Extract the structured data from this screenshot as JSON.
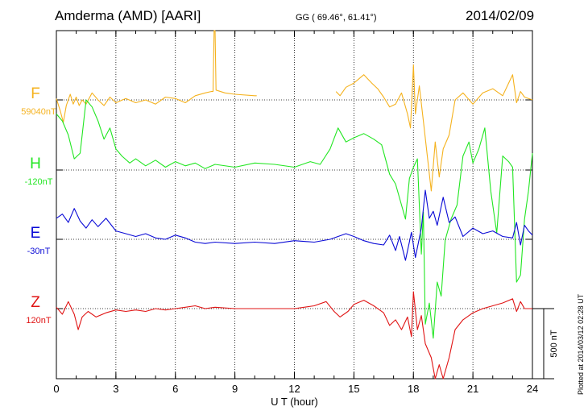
{
  "header": {
    "station": "Amderma (AMD)  [AARI]",
    "coords": "GG ( 69.46°,  61.41°)",
    "date": "2014/02/09"
  },
  "footnote": "Plotted at 2014/03/12 02:28 UT",
  "chart_data": {
    "type": "line",
    "xlabel": "U T (hour)",
    "xlim": [
      0,
      24
    ],
    "xticks": [
      "0",
      "3",
      "6",
      "9",
      "12",
      "15",
      "18",
      "21",
      "24"
    ],
    "grid": true,
    "scale_bar": {
      "label": "500 nT",
      "value_nT": 500
    },
    "series": [
      {
        "name": "F",
        "baseline_label": "59040nT",
        "color": "#f5b21e",
        "gaps": [
          [
            10.1,
            14.1
          ]
        ],
        "points": [
          [
            0,
            -10
          ],
          [
            0.2,
            80
          ],
          [
            0.35,
            160
          ],
          [
            0.5,
            40
          ],
          [
            0.7,
            -40
          ],
          [
            0.85,
            30
          ],
          [
            1.0,
            -20
          ],
          [
            1.15,
            40
          ],
          [
            1.3,
            0
          ],
          [
            1.5,
            30
          ],
          [
            1.8,
            -50
          ],
          [
            2.1,
            0
          ],
          [
            2.4,
            40
          ],
          [
            2.7,
            -20
          ],
          [
            3.0,
            20
          ],
          [
            3.5,
            -10
          ],
          [
            4.0,
            20
          ],
          [
            4.5,
            0
          ],
          [
            5.0,
            30
          ],
          [
            5.5,
            -20
          ],
          [
            6.0,
            -10
          ],
          [
            6.5,
            20
          ],
          [
            7.0,
            -30
          ],
          [
            7.5,
            -50
          ],
          [
            7.8,
            -60
          ],
          [
            7.9,
            -60
          ],
          [
            7.95,
            -1000
          ],
          [
            8.0,
            -1000
          ],
          [
            8.05,
            -70
          ],
          [
            8.5,
            -50
          ],
          [
            9.0,
            -40
          ],
          [
            10.0,
            -30
          ],
          [
            10.1,
            -30
          ],
          [
            14.1,
            -60
          ],
          [
            14.3,
            -30
          ],
          [
            14.6,
            -90
          ],
          [
            15.0,
            -120
          ],
          [
            15.5,
            -180
          ],
          [
            15.9,
            -120
          ],
          [
            16.2,
            -80
          ],
          [
            16.5,
            -20
          ],
          [
            16.8,
            50
          ],
          [
            17.1,
            30
          ],
          [
            17.4,
            -50
          ],
          [
            17.7,
            100
          ],
          [
            17.85,
            200
          ],
          [
            18.0,
            -250
          ],
          [
            18.1,
            100
          ],
          [
            18.3,
            -100
          ],
          [
            18.5,
            150
          ],
          [
            18.7,
            400
          ],
          [
            18.9,
            650
          ],
          [
            19.1,
            300
          ],
          [
            19.3,
            550
          ],
          [
            19.5,
            350
          ],
          [
            19.8,
            250
          ],
          [
            20.1,
            0
          ],
          [
            20.5,
            -50
          ],
          [
            21.0,
            30
          ],
          [
            21.5,
            -50
          ],
          [
            22.0,
            -80
          ],
          [
            22.5,
            -30
          ],
          [
            22.8,
            -120
          ],
          [
            23.0,
            -180
          ],
          [
            23.2,
            20
          ],
          [
            23.4,
            -60
          ],
          [
            23.6,
            -20
          ],
          [
            24.0,
            0
          ]
        ]
      },
      {
        "name": "H",
        "baseline_label": "-120nT",
        "color": "#22e622",
        "gaps": [],
        "points": [
          [
            0,
            -400
          ],
          [
            0.3,
            -350
          ],
          [
            0.6,
            -250
          ],
          [
            0.9,
            -80
          ],
          [
            1.2,
            -120
          ],
          [
            1.5,
            -500
          ],
          [
            1.8,
            -450
          ],
          [
            2.1,
            -350
          ],
          [
            2.4,
            -220
          ],
          [
            2.7,
            -300
          ],
          [
            3.0,
            -150
          ],
          [
            3.3,
            -100
          ],
          [
            3.7,
            -50
          ],
          [
            4.0,
            -80
          ],
          [
            4.5,
            -30
          ],
          [
            5.0,
            -70
          ],
          [
            5.5,
            -20
          ],
          [
            6.0,
            -60
          ],
          [
            6.5,
            -30
          ],
          [
            7.0,
            -50
          ],
          [
            7.5,
            -10
          ],
          [
            8.0,
            -40
          ],
          [
            9.0,
            -20
          ],
          [
            10.0,
            -50
          ],
          [
            11.0,
            -40
          ],
          [
            12.0,
            -20
          ],
          [
            12.8,
            -60
          ],
          [
            13.3,
            -40
          ],
          [
            13.8,
            -150
          ],
          [
            14.2,
            -300
          ],
          [
            14.6,
            -200
          ],
          [
            15.0,
            -230
          ],
          [
            15.5,
            -260
          ],
          [
            16.0,
            -220
          ],
          [
            16.4,
            -180
          ],
          [
            16.8,
            30
          ],
          [
            17.1,
            100
          ],
          [
            17.4,
            250
          ],
          [
            17.6,
            350
          ],
          [
            17.8,
            60
          ],
          [
            18.0,
            -20
          ],
          [
            18.2,
            -80
          ],
          [
            18.4,
            600
          ],
          [
            18.5,
            300
          ],
          [
            18.6,
            1100
          ],
          [
            18.8,
            950
          ],
          [
            19.0,
            1200
          ],
          [
            19.2,
            800
          ],
          [
            19.4,
            900
          ],
          [
            19.6,
            500
          ],
          [
            19.9,
            350
          ],
          [
            20.2,
            250
          ],
          [
            20.5,
            -100
          ],
          [
            20.8,
            -200
          ],
          [
            21.0,
            -50
          ],
          [
            21.3,
            -150
          ],
          [
            21.6,
            -300
          ],
          [
            21.9,
            150
          ],
          [
            22.2,
            450
          ],
          [
            22.5,
            -100
          ],
          [
            22.8,
            -60
          ],
          [
            23.0,
            -20
          ],
          [
            23.2,
            800
          ],
          [
            23.4,
            750
          ],
          [
            23.6,
            350
          ],
          [
            23.8,
            150
          ],
          [
            24.0,
            -120
          ]
        ]
      },
      {
        "name": "E",
        "baseline_label": "-30nT",
        "color": "#0a0ad6",
        "gaps": [],
        "points": [
          [
            0,
            -150
          ],
          [
            0.3,
            -180
          ],
          [
            0.6,
            -120
          ],
          [
            0.9,
            -220
          ],
          [
            1.2,
            -130
          ],
          [
            1.5,
            -80
          ],
          [
            1.8,
            -140
          ],
          [
            2.1,
            -90
          ],
          [
            2.5,
            -150
          ],
          [
            3.0,
            -60
          ],
          [
            3.5,
            -40
          ],
          [
            4.0,
            -20
          ],
          [
            4.5,
            -40
          ],
          [
            5.0,
            -10
          ],
          [
            5.5,
            0
          ],
          [
            6.0,
            -30
          ],
          [
            6.5,
            -10
          ],
          [
            7.0,
            20
          ],
          [
            7.5,
            30
          ],
          [
            8.0,
            20
          ],
          [
            9.0,
            30
          ],
          [
            10.0,
            20
          ],
          [
            11.0,
            30
          ],
          [
            12.0,
            10
          ],
          [
            13.0,
            20
          ],
          [
            13.8,
            0
          ],
          [
            14.2,
            -20
          ],
          [
            14.6,
            -40
          ],
          [
            15.0,
            -20
          ],
          [
            15.5,
            10
          ],
          [
            16.0,
            30
          ],
          [
            16.5,
            40
          ],
          [
            16.8,
            -30
          ],
          [
            17.1,
            80
          ],
          [
            17.3,
            -20
          ],
          [
            17.6,
            150
          ],
          [
            17.9,
            -50
          ],
          [
            18.1,
            130
          ],
          [
            18.4,
            -80
          ],
          [
            18.6,
            -350
          ],
          [
            18.8,
            -150
          ],
          [
            19.0,
            -200
          ],
          [
            19.2,
            -100
          ],
          [
            19.5,
            -300
          ],
          [
            19.8,
            -120
          ],
          [
            20.1,
            -160
          ],
          [
            20.5,
            -20
          ],
          [
            21.0,
            -80
          ],
          [
            21.5,
            -40
          ],
          [
            22.0,
            -60
          ],
          [
            22.5,
            -20
          ],
          [
            23.0,
            -10
          ],
          [
            23.2,
            -120
          ],
          [
            23.4,
            40
          ],
          [
            23.6,
            -100
          ],
          [
            23.8,
            -60
          ],
          [
            24.0,
            -30
          ]
        ]
      },
      {
        "name": "Z",
        "baseline_label": "120nT",
        "color": "#e01414",
        "gaps": [],
        "points": [
          [
            0,
            -10
          ],
          [
            0.3,
            40
          ],
          [
            0.6,
            -50
          ],
          [
            0.9,
            40
          ],
          [
            1.1,
            150
          ],
          [
            1.3,
            60
          ],
          [
            1.6,
            20
          ],
          [
            2.0,
            60
          ],
          [
            2.5,
            30
          ],
          [
            3.0,
            10
          ],
          [
            3.5,
            20
          ],
          [
            4.0,
            10
          ],
          [
            4.5,
            20
          ],
          [
            5.0,
            0
          ],
          [
            5.5,
            10
          ],
          [
            6.0,
            0
          ],
          [
            6.5,
            -10
          ],
          [
            7.0,
            -20
          ],
          [
            7.5,
            0
          ],
          [
            8.0,
            -10
          ],
          [
            9.0,
            0
          ],
          [
            10.0,
            0
          ],
          [
            11.0,
            0
          ],
          [
            12.0,
            0
          ],
          [
            13.0,
            -20
          ],
          [
            13.6,
            -50
          ],
          [
            14.0,
            20
          ],
          [
            14.3,
            60
          ],
          [
            14.7,
            20
          ],
          [
            15.0,
            -30
          ],
          [
            15.5,
            -60
          ],
          [
            16.0,
            -20
          ],
          [
            16.5,
            30
          ],
          [
            16.8,
            120
          ],
          [
            17.1,
            80
          ],
          [
            17.4,
            150
          ],
          [
            17.7,
            60
          ],
          [
            17.9,
            200
          ],
          [
            18.0,
            -120
          ],
          [
            18.2,
            150
          ],
          [
            18.4,
            50
          ],
          [
            18.6,
            250
          ],
          [
            18.9,
            350
          ],
          [
            19.1,
            550
          ],
          [
            19.3,
            400
          ],
          [
            19.5,
            500
          ],
          [
            19.8,
            350
          ],
          [
            20.1,
            150
          ],
          [
            20.5,
            80
          ],
          [
            21.0,
            30
          ],
          [
            21.5,
            0
          ],
          [
            22.0,
            -20
          ],
          [
            22.5,
            -40
          ],
          [
            23.0,
            -70
          ],
          [
            23.2,
            20
          ],
          [
            23.4,
            -50
          ],
          [
            23.6,
            0
          ],
          [
            24.0,
            0
          ]
        ]
      }
    ]
  }
}
